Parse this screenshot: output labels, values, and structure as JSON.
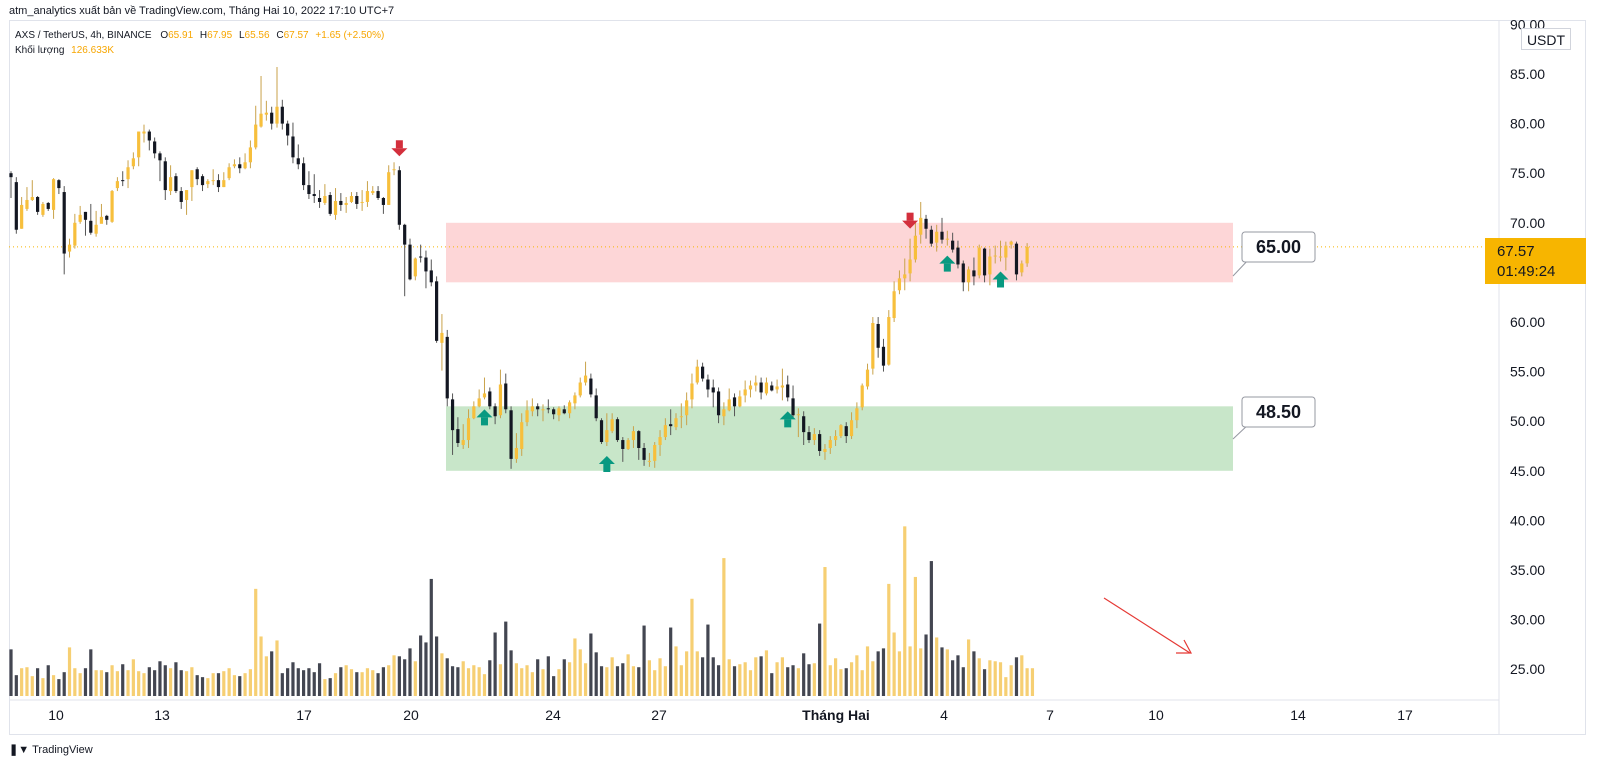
{
  "header": {
    "publisher_line": "atm_analytics xuất bản về TradingView.com, Tháng Hai 10, 2022 17:10 UTC+7",
    "symbol_line": "AXS / TetherUS, 4h, BINANCE",
    "ohlc": {
      "o_label": "O",
      "o": "65.91",
      "h_label": "H",
      "h": "67.95",
      "l_label": "L",
      "l": "65.56",
      "c_label": "C",
      "c": "67.57",
      "change": "+1.65 (+2.50%)"
    },
    "volume_label": "Khối lượng",
    "volume_value": "126.633K"
  },
  "price_axis": {
    "unit": "USDT",
    "labels": [
      "90.00",
      "85.00",
      "80.00",
      "75.00",
      "70.00",
      "65.00",
      "60.00",
      "55.00",
      "50.00",
      "45.00",
      "40.00",
      "35.00",
      "30.00",
      "25.00"
    ],
    "current_price": "67.57",
    "countdown": "01:49:24"
  },
  "time_axis": {
    "labels": [
      "10",
      "13",
      "17",
      "20",
      "24",
      "27",
      "Tháng Hai",
      "4",
      "7",
      "10",
      "14",
      "17"
    ]
  },
  "annotations": {
    "resistance_label": "65.00",
    "support_label": "48.50"
  },
  "colors": {
    "up_candle": "#f7bf3c",
    "down_candle": "#131722",
    "up_volume": "#f6cf73",
    "down_volume": "#434651",
    "resistance_zone": "#fdd6d7",
    "support_zone": "#c8e6c9",
    "arrow_down": "#d32f3c",
    "arrow_up": "#089981",
    "trend_line": "#e53935",
    "price_badge": "#f7b500"
  },
  "footer": {
    "brand": "TradingView"
  },
  "chart_data": {
    "type": "candlestick",
    "interval": "4h",
    "ylim": [
      24,
      90
    ],
    "zones": [
      {
        "name": "resistance",
        "low": 64.0,
        "high": 70.0,
        "label": "65.00"
      },
      {
        "name": "support",
        "low": 45.0,
        "high": 51.5,
        "label": "48.50"
      }
    ],
    "last_close": 67.57,
    "arrows_down_near_candles": [
      73,
      169
    ],
    "arrows_up_near_candles": [
      89,
      112,
      146,
      176,
      186
    ],
    "candles": [
      [
        75.0,
        74.6,
        75.2,
        72.5
      ],
      [
        74.1,
        69.3,
        74.6,
        68.9
      ],
      [
        69.4,
        71.8,
        72.6,
        69.4
      ],
      [
        71.4,
        72.3,
        73.6,
        71.2
      ],
      [
        72.3,
        72.6,
        74.3,
        72.2
      ],
      [
        72.6,
        71.1,
        72.7,
        70.8
      ],
      [
        70.8,
        71.9,
        72.1,
        70.6
      ],
      [
        72.0,
        71.4,
        72.1,
        71.2
      ],
      [
        71.3,
        74.4,
        74.5,
        70.4
      ],
      [
        74.3,
        73.5,
        74.4,
        72.9
      ],
      [
        73.1,
        66.9,
        73.7,
        64.8
      ],
      [
        67.1,
        67.8,
        68.4,
        66.5
      ],
      [
        67.7,
        70.0,
        70.9,
        67.4
      ],
      [
        70.1,
        70.8,
        71.7,
        69.9
      ],
      [
        71.1,
        70.3,
        71.1,
        68.7
      ],
      [
        70.2,
        69.0,
        71.9,
        68.8
      ],
      [
        68.9,
        69.8,
        71.2,
        68.6
      ],
      [
        69.9,
        70.6,
        71.9,
        70.1
      ],
      [
        70.7,
        70.3,
        70.8,
        69.8
      ],
      [
        70.1,
        73.2,
        73.3,
        70.0
      ],
      [
        73.5,
        74.2,
        74.6,
        73.2
      ],
      [
        74.3,
        74.2,
        75.2,
        73.7
      ],
      [
        74.4,
        75.6,
        76.3,
        73.5
      ],
      [
        75.7,
        76.5,
        77.1,
        75.4
      ],
      [
        76.6,
        79.2,
        79.2,
        75.7
      ],
      [
        79.0,
        79.2,
        79.9,
        78.1
      ],
      [
        79.2,
        78.3,
        79.4,
        77.3
      ],
      [
        78.2,
        77.0,
        78.6,
        76.5
      ],
      [
        77.0,
        76.3,
        77.2,
        74.2
      ],
      [
        76.2,
        73.3,
        76.6,
        72.3
      ],
      [
        73.2,
        74.6,
        75.8,
        72.8
      ],
      [
        74.7,
        73.2,
        75.0,
        73.0
      ],
      [
        73.2,
        72.1,
        73.6,
        71.4
      ],
      [
        72.3,
        73.3,
        73.3,
        70.8
      ],
      [
        73.6,
        75.3,
        75.3,
        72.2
      ],
      [
        75.4,
        74.4,
        75.6,
        73.8
      ],
      [
        74.7,
        73.8,
        74.9,
        73.2
      ],
      [
        73.9,
        74.2,
        74.4,
        73.5
      ],
      [
        74.2,
        74.3,
        75.4,
        73.8
      ],
      [
        74.3,
        73.6,
        74.9,
        73.1
      ],
      [
        73.6,
        74.3,
        75.1,
        73.6
      ],
      [
        74.5,
        75.6,
        76.0,
        74.3
      ],
      [
        75.7,
        75.9,
        76.4,
        75.5
      ],
      [
        75.9,
        75.5,
        76.6,
        75.0
      ],
      [
        75.5,
        76.1,
        77.0,
        75.4
      ],
      [
        76.1,
        77.6,
        78.3,
        75.5
      ],
      [
        77.6,
        79.9,
        81.8,
        77.4
      ],
      [
        79.7,
        81.0,
        84.8,
        79.6
      ],
      [
        80.9,
        81.1,
        82.3,
        80.3
      ],
      [
        81.1,
        80.0,
        81.7,
        79.4
      ],
      [
        80.0,
        81.7,
        85.7,
        79.6
      ],
      [
        81.7,
        80.0,
        82.4,
        79.4
      ],
      [
        80.0,
        78.8,
        80.3,
        77.8
      ],
      [
        78.7,
        76.6,
        80.1,
        76.0
      ],
      [
        76.5,
        75.9,
        77.9,
        75.4
      ],
      [
        76.0,
        73.8,
        76.6,
        73.3
      ],
      [
        73.8,
        72.9,
        75.2,
        72.4
      ],
      [
        72.9,
        72.7,
        74.9,
        72.0
      ],
      [
        72.5,
        72.1,
        73.3,
        71.5
      ],
      [
        72.0,
        72.7,
        73.9,
        71.8
      ],
      [
        72.8,
        70.9,
        73.1,
        70.7
      ],
      [
        70.8,
        72.2,
        73.5,
        70.3
      ],
      [
        72.2,
        71.8,
        73.0,
        71.2
      ],
      [
        71.8,
        72.0,
        72.6,
        71.0
      ],
      [
        72.1,
        72.7,
        73.1,
        72.0
      ],
      [
        72.7,
        71.9,
        73.1,
        71.4
      ],
      [
        72.0,
        72.1,
        73.3,
        71.2
      ],
      [
        72.1,
        73.2,
        74.2,
        71.6
      ],
      [
        73.0,
        73.2,
        73.7,
        72.8
      ],
      [
        73.2,
        72.5,
        73.7,
        72.3
      ],
      [
        72.5,
        71.8,
        72.6,
        70.9
      ],
      [
        71.8,
        75.1,
        75.8,
        71.8
      ],
      [
        75.4,
        75.4,
        76.1,
        74.8
      ],
      [
        75.3,
        69.8,
        75.7,
        69.3
      ],
      [
        69.8,
        67.8,
        69.9,
        62.6
      ],
      [
        67.8,
        64.3,
        68.4,
        64.2
      ],
      [
        64.6,
        66.4,
        66.5,
        64.2
      ],
      [
        66.6,
        66.5,
        67.8,
        66.0
      ],
      [
        66.5,
        65.1,
        67.2,
        63.4
      ],
      [
        65.2,
        64.0,
        66.3,
        63.6
      ],
      [
        64.1,
        58.1,
        64.6,
        57.9
      ],
      [
        57.9,
        58.9,
        60.8,
        55.1
      ],
      [
        58.5,
        52.3,
        59.2,
        51.5
      ],
      [
        52.2,
        49.1,
        52.8,
        46.6
      ],
      [
        49.2,
        47.8,
        50.4,
        47.4
      ],
      [
        47.6,
        48.1,
        49.7,
        47.2
      ],
      [
        48.1,
        50.3,
        51.2,
        47.3
      ],
      [
        50.3,
        51.5,
        52.0,
        50.2
      ],
      [
        51.5,
        52.3,
        53.2,
        51.4
      ],
      [
        52.4,
        52.8,
        54.4,
        52.2
      ],
      [
        53.0,
        51.5,
        53.4,
        51.2
      ],
      [
        51.5,
        50.5,
        51.8,
        49.7
      ],
      [
        50.6,
        53.7,
        55.2,
        50.3
      ],
      [
        53.8,
        51.2,
        54.8,
        50.8
      ],
      [
        51.1,
        46.2,
        51.5,
        45.2
      ],
      [
        46.2,
        47.3,
        48.8,
        45.8
      ],
      [
        47.2,
        49.9,
        50.8,
        46.5
      ],
      [
        49.9,
        51.1,
        52.1,
        49.5
      ],
      [
        51.0,
        51.5,
        52.3,
        50.5
      ],
      [
        51.5,
        51.2,
        51.8,
        50.5
      ],
      [
        51.2,
        51.2,
        51.7,
        50.0
      ],
      [
        51.3,
        51.2,
        52.2,
        50.8
      ],
      [
        51.2,
        50.7,
        51.4,
        50.2
      ],
      [
        50.6,
        51.3,
        51.5,
        50.0
      ],
      [
        51.2,
        50.8,
        51.6,
        50.7
      ],
      [
        50.8,
        51.9,
        52.1,
        50.3
      ],
      [
        51.8,
        52.6,
        52.9,
        51.2
      ],
      [
        52.6,
        53.9,
        54.4,
        52.4
      ],
      [
        53.9,
        54.6,
        56.0,
        53.6
      ],
      [
        54.3,
        52.7,
        54.8,
        52.4
      ],
      [
        52.6,
        50.3,
        53.3,
        50.0
      ],
      [
        50.1,
        47.9,
        50.3,
        47.7
      ],
      [
        47.9,
        49.1,
        50.8,
        47.5
      ],
      [
        49.0,
        50.2,
        50.8,
        48.8
      ],
      [
        50.2,
        48.1,
        50.4,
        47.9
      ],
      [
        48.1,
        47.2,
        48.4,
        45.9
      ],
      [
        47.2,
        48.1,
        48.3,
        47.1
      ],
      [
        48.1,
        49.0,
        49.5,
        47.3
      ],
      [
        49.0,
        47.3,
        49.1,
        46.1
      ],
      [
        47.3,
        46.1,
        47.8,
        45.5
      ],
      [
        46.0,
        46.0,
        46.8,
        45.4
      ],
      [
        46.0,
        47.6,
        47.9,
        45.3
      ],
      [
        47.6,
        48.4,
        49.1,
        46.5
      ],
      [
        48.4,
        49.6,
        50.3,
        48.1
      ],
      [
        49.7,
        49.5,
        51.2,
        48.6
      ],
      [
        49.4,
        50.3,
        50.8,
        49.1
      ],
      [
        50.4,
        50.5,
        51.8,
        49.3
      ],
      [
        50.6,
        52.1,
        52.9,
        49.6
      ],
      [
        52.2,
        53.8,
        54.8,
        51.3
      ],
      [
        53.9,
        55.5,
        56.2,
        53.7
      ],
      [
        55.5,
        54.3,
        55.9,
        54.0
      ],
      [
        54.2,
        53.2,
        54.7,
        52.4
      ],
      [
        53.4,
        52.9,
        54.2,
        51.4
      ],
      [
        53.0,
        50.6,
        53.4,
        49.8
      ],
      [
        50.5,
        51.2,
        51.9,
        49.6
      ],
      [
        51.1,
        52.2,
        53.3,
        51.0
      ],
      [
        52.4,
        51.5,
        52.8,
        50.5
      ],
      [
        51.5,
        52.5,
        53.1,
        51.4
      ],
      [
        52.6,
        53.2,
        54.1,
        51.9
      ],
      [
        53.2,
        53.6,
        54.1,
        52.4
      ],
      [
        53.6,
        53.9,
        54.6,
        53.0
      ],
      [
        53.9,
        52.9,
        54.4,
        52.2
      ],
      [
        52.8,
        53.9,
        54.4,
        52.6
      ],
      [
        53.6,
        53.1,
        54.0,
        53.0
      ],
      [
        53.2,
        53.5,
        54.2,
        52.8
      ],
      [
        53.4,
        53.6,
        55.3,
        52.1
      ],
      [
        53.7,
        52.4,
        54.6,
        52.0
      ],
      [
        52.3,
        50.6,
        53.6,
        50.4
      ],
      [
        50.6,
        50.7,
        51.3,
        48.4
      ],
      [
        50.5,
        48.9,
        51.0,
        47.6
      ],
      [
        48.9,
        48.1,
        49.5,
        47.8
      ],
      [
        48.1,
        48.7,
        49.3,
        47.6
      ],
      [
        48.7,
        47.0,
        49.1,
        46.5
      ],
      [
        46.9,
        47.2,
        47.7,
        46.1
      ],
      [
        47.3,
        48.1,
        48.5,
        46.7
      ],
      [
        48.1,
        48.5,
        49.1,
        47.5
      ],
      [
        48.5,
        49.6,
        49.7,
        48.3
      ],
      [
        49.5,
        48.5,
        49.9,
        47.8
      ],
      [
        48.5,
        50.1,
        50.9,
        48.2
      ],
      [
        50.1,
        51.3,
        51.9,
        49.3
      ],
      [
        51.4,
        53.6,
        53.8,
        51.1
      ],
      [
        53.5,
        55.2,
        55.8,
        53.2
      ],
      [
        55.3,
        59.9,
        60.5,
        54.7
      ],
      [
        59.8,
        57.4,
        60.5,
        56.4
      ],
      [
        57.5,
        55.6,
        58.3,
        55.0
      ],
      [
        55.7,
        60.5,
        61.2,
        55.6
      ],
      [
        60.4,
        63.1,
        64.1,
        60.0
      ],
      [
        63.2,
        64.4,
        65.2,
        62.8
      ],
      [
        64.4,
        64.8,
        66.4,
        63.2
      ],
      [
        64.9,
        66.3,
        68.4,
        64.1
      ],
      [
        66.3,
        68.7,
        70.2,
        66.0
      ],
      [
        68.8,
        70.5,
        72.1,
        67.9
      ],
      [
        70.4,
        69.4,
        70.8,
        68.4
      ],
      [
        69.3,
        67.9,
        69.7,
        67.6
      ],
      [
        68.0,
        69.1,
        69.8,
        67.1
      ],
      [
        69.1,
        68.3,
        70.5,
        67.9
      ],
      [
        68.4,
        68.4,
        69.2,
        67.7
      ],
      [
        68.2,
        67.3,
        69.0,
        67.0
      ],
      [
        67.5,
        65.8,
        68.2,
        65.4
      ],
      [
        65.9,
        64.0,
        66.2,
        63.1
      ],
      [
        64.0,
        65.3,
        65.6,
        63.1
      ],
      [
        65.2,
        64.6,
        66.5,
        63.7
      ],
      [
        64.7,
        67.5,
        67.8,
        64.4
      ],
      [
        67.4,
        64.7,
        67.5,
        64.0
      ],
      [
        64.8,
        66.6,
        67.4,
        63.7
      ],
      [
        66.6,
        66.7,
        67.7,
        65.9
      ],
      [
        66.6,
        66.6,
        68.2,
        66.1
      ],
      [
        66.5,
        67.7,
        68.1,
        65.2
      ],
      [
        67.8,
        68.1,
        68.2,
        67.4
      ],
      [
        67.9,
        64.8,
        68.1,
        64.2
      ],
      [
        65.0,
        65.9,
        66.2,
        64.6
      ],
      [
        65.91,
        67.57,
        67.95,
        65.56
      ]
    ],
    "volumes": [
      27.0,
      24.4,
      25.1,
      25.2,
      24.3,
      25.1,
      24.1,
      25.4,
      24.4,
      24.0,
      24.7,
      27.2,
      25.1,
      24.6,
      25.1,
      27.0,
      24.9,
      24.9,
      24.7,
      25.4,
      24.8,
      25.5,
      24.9,
      26.0,
      24.8,
      24.6,
      25.2,
      24.9,
      25.8,
      25.4,
      25.1,
      25.7,
      24.9,
      24.8,
      25.2,
      24.4,
      24.2,
      24.1,
      24.6,
      24.6,
      24.8,
      25.1,
      24.4,
      24.3,
      24.6,
      25.0,
      33.1,
      28.3,
      26.3,
      26.8,
      27.9,
      24.6,
      25.1,
      25.7,
      25.1,
      24.9,
      25.1,
      24.7,
      25.6,
      24.0,
      24.1,
      24.6,
      25.2,
      25.4,
      25.0,
      24.7,
      24.7,
      25.1,
      24.9,
      24.6,
      25.2,
      25.4,
      26.4,
      26.3,
      26.0,
      27.1,
      25.8,
      28.4,
      27.7,
      34.1,
      28.3,
      26.6,
      26.1,
      25.3,
      25.2,
      25.8,
      25.1,
      25.4,
      25.2,
      24.5,
      25.9,
      28.7,
      25.5,
      29.8,
      26.9,
      25.6,
      25.1,
      25.4,
      24.7,
      26.0,
      25.0,
      26.3,
      24.3,
      25.0,
      26.0,
      25.7,
      28.1,
      27.0,
      25.6,
      28.6,
      26.7,
      25.3,
      25.2,
      26.2,
      25.3,
      25.6,
      26.5,
      25.3,
      25.2,
      29.4,
      25.9,
      24.9,
      26.1,
      25.3,
      29.2,
      27.3,
      25.4,
      26.8,
      32.1,
      26.8,
      26.2,
      29.5,
      26.2,
      25.4,
      36.2,
      26.0,
      25.3,
      25.5,
      25.7,
      24.9,
      26.2,
      26.3,
      26.9,
      24.6,
      25.7,
      26.2,
      25.2,
      25.4,
      25.1,
      26.6,
      25.5,
      25.6,
      29.6,
      35.3,
      25.4,
      26.1,
      25.0,
      25.1,
      25.7,
      26.4,
      24.9,
      27.3,
      25.8,
      26.8,
      27.1,
      33.6,
      28.7,
      26.8,
      39.4,
      27.3,
      34.3,
      27.1,
      28.5,
      35.9,
      28.2,
      27.2,
      27.0,
      25.9,
      26.4,
      25.2,
      28.0,
      26.8,
      26.1,
      25.0,
      25.9,
      25.8,
      25.7,
      24.2,
      25.4,
      26.2,
      26.4,
      25.1,
      25.1
    ]
  }
}
